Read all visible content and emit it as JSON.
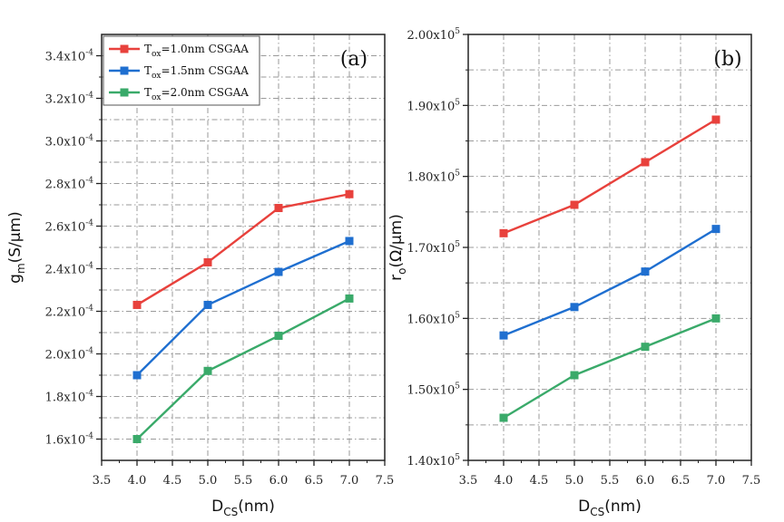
{
  "chart_data": [
    {
      "type": "line",
      "panel": "(a)",
      "xlabel": {
        "main": "D",
        "sub": "CS",
        "tail": "(nm)"
      },
      "ylabel": {
        "main": "g",
        "sub": "m",
        "tail": "(S/μm)"
      },
      "xlim": [
        3.5,
        7.5
      ],
      "xticks": [
        3.5,
        4.0,
        4.5,
        5.0,
        5.5,
        6.0,
        6.5,
        7.0,
        7.5
      ],
      "xtick_labels": [
        "3.5",
        "4.0",
        "4.5",
        "5.0",
        "5.5",
        "6.0",
        "6.5",
        "7.0",
        "7.5"
      ],
      "ylim": [
        0.00015,
        0.00035
      ],
      "yticks": [
        0.00016,
        0.00018,
        0.0002,
        0.00022,
        0.00024,
        0.00026,
        0.00028,
        0.0003,
        0.00032,
        0.00034
      ],
      "ytick_labels": [
        {
          "mant": "1.6x10",
          "exp": "-4"
        },
        {
          "mant": "1.8x10",
          "exp": "-4"
        },
        {
          "mant": "2.0x10",
          "exp": "-4"
        },
        {
          "mant": "2.2x10",
          "exp": "-4"
        },
        {
          "mant": "2.4x10",
          "exp": "-4"
        },
        {
          "mant": "2.6x10",
          "exp": "-4"
        },
        {
          "mant": "2.8x10",
          "exp": "-4"
        },
        {
          "mant": "3.0x10",
          "exp": "-4"
        },
        {
          "mant": "3.2x10",
          "exp": "-4"
        },
        {
          "mant": "3.4x10",
          "exp": "-4"
        }
      ],
      "grid": true,
      "legend": "top-left",
      "legend_entries": [
        {
          "main": "T",
          "sub": "ox",
          "tail": "=1.0nm CSGAA"
        },
        {
          "main": "T",
          "sub": "ox",
          "tail": "=1.5nm CSGAA"
        },
        {
          "main": "T",
          "sub": "ox",
          "tail": "=2.0nm CSGAA"
        }
      ],
      "x": [
        4.0,
        5.0,
        6.0,
        7.0
      ],
      "series": [
        {
          "name": "Tox=1.0nm CSGAA",
          "color": "#e8413c",
          "values": [
            0.000223,
            0.000243,
            0.0002685,
            0.000275
          ]
        },
        {
          "name": "Tox=1.5nm CSGAA",
          "color": "#1f6fd0",
          "values": [
            0.00019,
            0.000223,
            0.0002385,
            0.000253
          ]
        },
        {
          "name": "Tox=2.0nm CSGAA",
          "color": "#3aaa6a",
          "values": [
            0.00016,
            0.000192,
            0.0002085,
            0.000226
          ]
        }
      ]
    },
    {
      "type": "line",
      "panel": "(b)",
      "xlabel": {
        "main": "D",
        "sub": "CS",
        "tail": "(nm)"
      },
      "ylabel": {
        "main": "r",
        "sub": "o",
        "tail": "(Ω/μm)"
      },
      "xlim": [
        3.5,
        7.5
      ],
      "xticks": [
        3.5,
        4.0,
        4.5,
        5.0,
        5.5,
        6.0,
        6.5,
        7.0,
        7.5
      ],
      "xtick_labels": [
        "3.5",
        "4.0",
        "4.5",
        "5.0",
        "5.5",
        "6.0",
        "6.5",
        "7.0",
        "7.5"
      ],
      "ylim": [
        140000.0,
        200000.0
      ],
      "yticks": [
        140000.0,
        150000.0,
        160000.0,
        170000.0,
        180000.0,
        190000.0,
        200000.0
      ],
      "ytick_labels": [
        {
          "mant": "1.40x10",
          "exp": "5"
        },
        {
          "mant": "1.50x10",
          "exp": "5"
        },
        {
          "mant": "1.60x10",
          "exp": "5"
        },
        {
          "mant": "1.70x10",
          "exp": "5"
        },
        {
          "mant": "1.80x10",
          "exp": "5"
        },
        {
          "mant": "1.90x10",
          "exp": "5"
        },
        {
          "mant": "2.00x10",
          "exp": "5"
        }
      ],
      "grid": true,
      "x": [
        4.0,
        5.0,
        6.0,
        7.0
      ],
      "series": [
        {
          "name": "Tox=1.0nm CSGAA",
          "color": "#e8413c",
          "values": [
            172000.0,
            176000.0,
            182000.0,
            188000.0
          ]
        },
        {
          "name": "Tox=1.5nm CSGAA",
          "color": "#1f6fd0",
          "values": [
            157600.0,
            161600.0,
            166600.0,
            172600.0
          ]
        },
        {
          "name": "Tox=2.0nm CSGAA",
          "color": "#3aaa6a",
          "values": [
            146000.0,
            152000.0,
            156000.0,
            160000.0
          ]
        }
      ]
    }
  ]
}
